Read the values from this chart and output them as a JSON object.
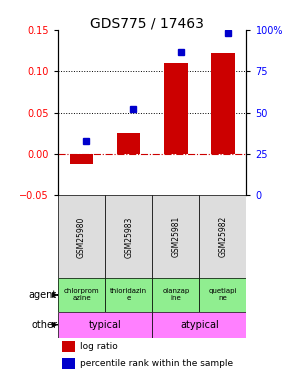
{
  "title": "GDS775 / 17463",
  "samples": [
    "GSM25980",
    "GSM25983",
    "GSM25981",
    "GSM25982"
  ],
  "log_ratio": [
    -0.012,
    0.025,
    0.11,
    0.122
  ],
  "percentile_rank_pct": [
    33,
    52,
    87,
    98
  ],
  "left_ylim": [
    -0.05,
    0.15
  ],
  "right_ylim": [
    0,
    100
  ],
  "left_yticks": [
    -0.05,
    0.0,
    0.05,
    0.1,
    0.15
  ],
  "right_yticks": [
    0,
    25,
    50,
    75,
    100
  ],
  "dotted_lines": [
    0.05,
    0.1
  ],
  "agent_labels": [
    "chlorprom\nazine",
    "thioridazin\ne",
    "olanzap\nine",
    "quetiapi\nne"
  ],
  "agent_color": "#90EE90",
  "other_color": "#FF80FF",
  "bar_color": "#CC0000",
  "dot_color": "#0000CC",
  "zero_line_color": "#CC0000",
  "label_agent": "agent",
  "label_other": "other",
  "title_fontsize": 10,
  "tick_fontsize": 7,
  "bar_width": 0.5
}
